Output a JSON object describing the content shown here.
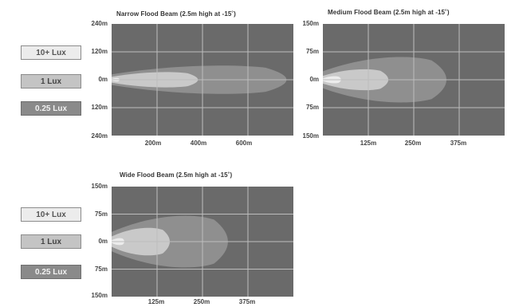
{
  "legend": [
    "10+ Lux",
    "1 Lux",
    "0.25 Lux"
  ],
  "colors": {
    "plot_bg": "#6a6a6a",
    "grid": "#bdbdbd",
    "lux_10": "#ececec",
    "lux_1": "#c9c9c9",
    "lux_025": "#8f8f8f"
  },
  "chart_data": [
    {
      "type": "beam_plot",
      "title": "Narrow Flood Beam (2.5m high at -15˚)",
      "y_ticks": [
        "240m",
        "120m",
        "0m",
        "120m",
        "240m"
      ],
      "x_ticks": [
        "200m",
        "400m",
        "600m"
      ],
      "x_range_m": [
        0,
        800
      ],
      "y_range_m": [
        -240,
        240
      ],
      "beam_length_m": {
        "lux_10": 35,
        "lux_1": 380,
        "lux_025": 770
      },
      "beam_halfwidth_m": {
        "lux_10": 8,
        "lux_1": 35,
        "lux_025": 65
      }
    },
    {
      "type": "beam_plot",
      "title": "Medium Flood Beam (2.5m high at -15˚)",
      "y_ticks": [
        "150m",
        "75m",
        "0m",
        "75m",
        "150m"
      ],
      "x_ticks": [
        "125m",
        "250m",
        "375m"
      ],
      "x_range_m": [
        0,
        500
      ],
      "y_range_m": [
        -150,
        150
      ],
      "beam_length_m": {
        "lux_10": 50,
        "lux_1": 180,
        "lux_025": 340
      },
      "beam_halfwidth_m": {
        "lux_10": 10,
        "lux_1": 30,
        "lux_025": 65
      }
    },
    {
      "type": "beam_plot",
      "title": "Wide Flood Beam (2.5m high at -15˚)",
      "y_ticks": [
        "150m",
        "75m",
        "0m",
        "75m",
        "150m"
      ],
      "x_ticks": [
        "125m",
        "250m",
        "375m"
      ],
      "x_range_m": [
        0,
        500
      ],
      "y_range_m": [
        -150,
        150
      ],
      "beam_length_m": {
        "lux_10": 35,
        "lux_1": 160,
        "lux_025": 320
      },
      "beam_halfwidth_m": {
        "lux_10": 10,
        "lux_1": 40,
        "lux_025": 75
      }
    }
  ]
}
